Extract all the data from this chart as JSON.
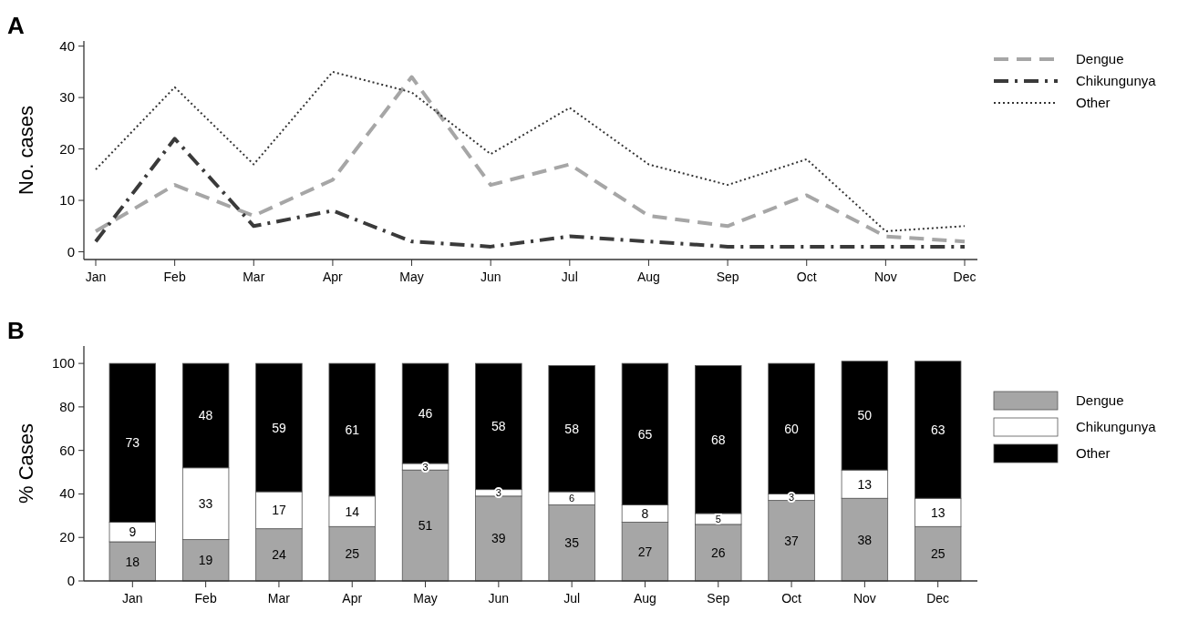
{
  "chart_data": [
    {
      "type": "line",
      "annotations": [
        "A"
      ],
      "ylabel": "No. cases",
      "categories": [
        "Jan",
        "Feb",
        "Mar",
        "Apr",
        "May",
        "Jun",
        "Jul",
        "Aug",
        "Sep",
        "Oct",
        "Nov",
        "Dec"
      ],
      "ylim": [
        -1.5,
        41
      ],
      "yticks": [
        0,
        10,
        20,
        30,
        40
      ],
      "legend": "top right",
      "grid": false,
      "marker": "none",
      "series": [
        {
          "name": "Dengue",
          "color": "#a6a6a6",
          "line_style": "dashed",
          "values": [
            4,
            13,
            7,
            14,
            34,
            13,
            17,
            7,
            5,
            11,
            3,
            2
          ]
        },
        {
          "name": "Chikungunya",
          "color": "#3a3a3a",
          "line_style": "dashdot",
          "values": [
            2,
            22,
            5,
            8,
            2,
            1,
            3,
            2,
            1,
            1,
            1,
            1
          ]
        },
        {
          "name": "Other",
          "color": "#333333",
          "line_style": "dotted",
          "values": [
            16,
            32,
            17,
            35,
            31,
            19,
            28,
            17,
            13,
            18,
            4,
            5
          ]
        }
      ]
    },
    {
      "type": "bar",
      "stacked": true,
      "annotations": [
        "B"
      ],
      "ylabel": "% Cases",
      "categories": [
        "Jan",
        "Feb",
        "Mar",
        "Apr",
        "May",
        "Jun",
        "Jul",
        "Aug",
        "Sep",
        "Oct",
        "Nov",
        "Dec"
      ],
      "ylim": [
        0,
        108
      ],
      "yticks": [
        0,
        20,
        40,
        60,
        80,
        100
      ],
      "legend": "top right",
      "grid": false,
      "data_labels": true,
      "series": [
        {
          "name": "Dengue",
          "color": "#a6a6a6",
          "values": [
            18,
            19,
            24,
            25,
            51,
            39,
            35,
            27,
            26,
            37,
            38,
            25
          ]
        },
        {
          "name": "Chikungunya",
          "color": "#ffffff",
          "values": [
            9,
            33,
            17,
            14,
            3,
            3,
            6,
            8,
            5,
            3,
            13,
            13
          ]
        },
        {
          "name": "Other",
          "color": "#000000",
          "values": [
            73,
            48,
            59,
            61,
            46,
            58,
            58,
            65,
            68,
            60,
            50,
            63
          ]
        }
      ]
    }
  ]
}
